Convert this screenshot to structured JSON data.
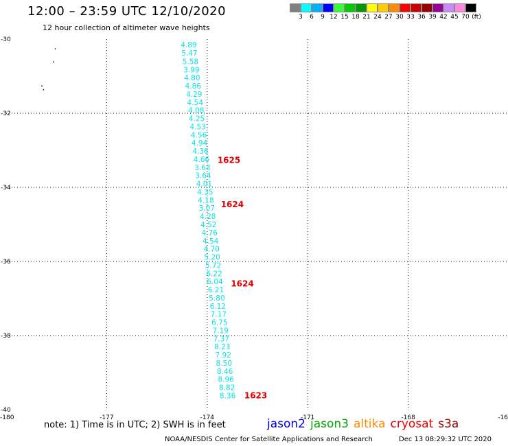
{
  "header": {
    "title": "12:00 – 23:59 UTC 12/10/2020",
    "subtitle": "12 hour collection of altimeter wave heights"
  },
  "color_scale": {
    "colors": [
      "#808080",
      "#00ffff",
      "#00b0ff",
      "#0000ff",
      "#33ff33",
      "#00cc00",
      "#009900",
      "#ffff00",
      "#ffcc00",
      "#ff8c00",
      "#ff0000",
      "#cc0000",
      "#990000",
      "#990099",
      "#cc88ff",
      "#ff88dd",
      "#000000"
    ],
    "labels": [
      "3",
      "6",
      "9",
      "12",
      "15",
      "18",
      "21",
      "24",
      "27",
      "30",
      "33",
      "36",
      "39",
      "42",
      "45",
      "70",
      "(ft)"
    ]
  },
  "axes": {
    "lat_labels": [
      "-30",
      "-32",
      "-34",
      "-36",
      "-38",
      "-40"
    ],
    "lon_labels": [
      "-180",
      "-177",
      "-174",
      "-171",
      "-168",
      "-16"
    ]
  },
  "chart_data": {
    "type": "scatter",
    "xlabel": "",
    "ylabel": "",
    "lon_range": [
      -180,
      -165
    ],
    "lat_range": [
      -40,
      -30
    ],
    "swh_track": [
      {
        "lat": -30.15,
        "lon": -174.55,
        "swh": "4.89"
      },
      {
        "lat": -30.37,
        "lon": -174.53,
        "swh": "5.47"
      },
      {
        "lat": -30.6,
        "lon": -174.5,
        "swh": "5.58"
      },
      {
        "lat": -30.82,
        "lon": -174.47,
        "swh": "3.99"
      },
      {
        "lat": -31.04,
        "lon": -174.45,
        "swh": "4.80"
      },
      {
        "lat": -31.26,
        "lon": -174.42,
        "swh": "4.86"
      },
      {
        "lat": -31.48,
        "lon": -174.39,
        "swh": "4.29"
      },
      {
        "lat": -31.7,
        "lon": -174.36,
        "swh": "4.54"
      },
      {
        "lat": -31.92,
        "lon": -174.33,
        "swh": "4.08"
      },
      {
        "lat": -32.14,
        "lon": -174.31,
        "swh": "4.25"
      },
      {
        "lat": -32.36,
        "lon": -174.28,
        "swh": "4.53"
      },
      {
        "lat": -32.58,
        "lon": -174.25,
        "swh": "4.56"
      },
      {
        "lat": -32.8,
        "lon": -174.23,
        "swh": "4.94"
      },
      {
        "lat": -33.02,
        "lon": -174.2,
        "swh": "4.36"
      },
      {
        "lat": -33.24,
        "lon": -174.17,
        "swh": "4.66"
      },
      {
        "lat": -33.46,
        "lon": -174.14,
        "swh": "3.63"
      },
      {
        "lat": -33.68,
        "lon": -174.12,
        "swh": "3.64"
      },
      {
        "lat": -33.9,
        "lon": -174.09,
        "swh": "4.01"
      },
      {
        "lat": -34.12,
        "lon": -174.06,
        "swh": "4.35"
      },
      {
        "lat": -34.34,
        "lon": -174.04,
        "swh": "4.18"
      },
      {
        "lat": -34.56,
        "lon": -174.01,
        "swh": "3.07"
      },
      {
        "lat": -34.78,
        "lon": -173.98,
        "swh": "4.28"
      },
      {
        "lat": -35.0,
        "lon": -173.96,
        "swh": "4.52"
      },
      {
        "lat": -35.22,
        "lon": -173.93,
        "swh": "4.76"
      },
      {
        "lat": -35.44,
        "lon": -173.9,
        "swh": "4.54"
      },
      {
        "lat": -35.66,
        "lon": -173.87,
        "swh": "4.70"
      },
      {
        "lat": -35.88,
        "lon": -173.85,
        "swh": "5.20"
      },
      {
        "lat": -36.1,
        "lon": -173.82,
        "swh": "5.72"
      },
      {
        "lat": -36.32,
        "lon": -173.79,
        "swh": "6.22"
      },
      {
        "lat": -36.54,
        "lon": -173.77,
        "swh": "6.04"
      },
      {
        "lat": -36.76,
        "lon": -173.74,
        "swh": "6.21"
      },
      {
        "lat": -36.98,
        "lon": -173.71,
        "swh": "5.80"
      },
      {
        "lat": -37.2,
        "lon": -173.68,
        "swh": "6.12"
      },
      {
        "lat": -37.42,
        "lon": -173.66,
        "swh": "7.17"
      },
      {
        "lat": -37.64,
        "lon": -173.63,
        "swh": "6.75"
      },
      {
        "lat": -37.86,
        "lon": -173.6,
        "swh": "7.19"
      },
      {
        "lat": -38.08,
        "lon": -173.58,
        "swh": "7.37"
      },
      {
        "lat": -38.3,
        "lon": -173.55,
        "swh": "8.23"
      },
      {
        "lat": -38.52,
        "lon": -173.52,
        "swh": "7.92"
      },
      {
        "lat": -38.74,
        "lon": -173.5,
        "swh": "8.50"
      },
      {
        "lat": -38.96,
        "lon": -173.47,
        "swh": "8.46"
      },
      {
        "lat": -39.18,
        "lon": -173.44,
        "swh": "8.96"
      },
      {
        "lat": -39.4,
        "lon": -173.41,
        "swh": "8.82"
      },
      {
        "lat": -39.62,
        "lon": -173.39,
        "swh": "8.36"
      }
    ],
    "time_labels": [
      {
        "lat": -33.27,
        "lon": -173.35,
        "text": "1625"
      },
      {
        "lat": -34.46,
        "lon": -173.25,
        "text": "1624"
      },
      {
        "lat": -36.6,
        "lon": -172.95,
        "text": "1624"
      },
      {
        "lat": -39.62,
        "lon": -172.55,
        "text": "1623"
      }
    ],
    "coast_points": [
      {
        "lat": -30.25,
        "lon": -178.55
      },
      {
        "lat": -30.6,
        "lon": -178.6
      },
      {
        "lat": -31.25,
        "lon": -178.95
      },
      {
        "lat": -31.35,
        "lon": -178.9
      }
    ]
  },
  "footer": {
    "note": "note:  1) Time is in UTC;  2) SWH is in feet",
    "satellites": [
      {
        "name": "jason2",
        "color": "#0000ee"
      },
      {
        "name": "jason3",
        "color": "#00aa00"
      },
      {
        "name": "altika",
        "color": "#ff8c00"
      },
      {
        "name": "cryosat",
        "color": "#ee0000"
      },
      {
        "name": "s3a",
        "color": "#990000"
      }
    ],
    "credit": "NOAA/NESDIS Center for Satellite Applications and Research",
    "timestamp": "Dec 13 08:29:32 UTC 2020"
  }
}
